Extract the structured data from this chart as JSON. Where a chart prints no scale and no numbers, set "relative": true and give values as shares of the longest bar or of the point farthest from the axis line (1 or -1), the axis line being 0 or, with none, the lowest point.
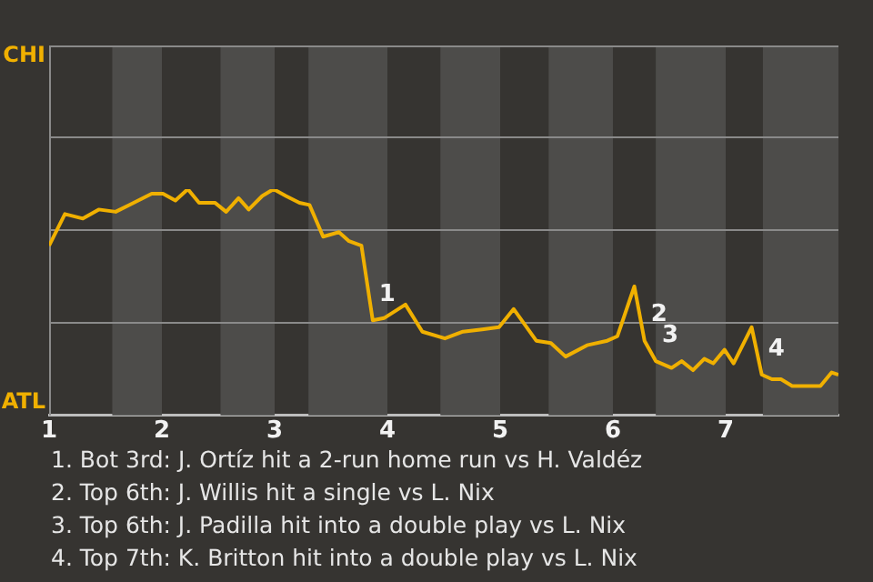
{
  "chart_data": {
    "type": "line",
    "relative": true,
    "x": [
      1,
      1.14,
      1.3,
      1.44,
      1.59,
      1.71,
      1.91,
      2.01,
      2.12,
      2.23,
      2.33,
      2.47,
      2.57,
      2.68,
      2.77,
      2.89,
      2.99,
      3.1,
      3.22,
      3.31,
      3.43,
      3.57,
      3.66,
      3.77,
      3.87,
      3.97,
      4.16,
      4.31,
      4.51,
      4.67,
      4.84,
      4.99,
      5.12,
      5.32,
      5.45,
      5.58,
      5.77,
      5.95,
      6.04,
      6.19,
      6.28,
      6.38,
      6.52,
      6.61,
      6.71,
      6.81,
      6.89,
      6.99,
      7.07,
      7.23,
      7.32,
      7.41,
      7.49,
      7.59,
      7.84,
      7.94,
      8
    ],
    "series": [
      {
        "color": "#f0b000",
        "values": [
          0.75,
          0.89,
          0.87,
          0.91,
          0.9,
          0.93,
          0.98,
          0.98,
          0.95,
          1,
          0.94,
          0.94,
          0.9,
          0.96,
          0.91,
          0.97,
          1,
          0.97,
          0.94,
          0.93,
          0.79,
          0.81,
          0.77,
          0.75,
          0.42,
          0.43,
          0.49,
          0.37,
          0.34,
          0.37,
          0.38,
          0.39,
          0.47,
          0.33,
          0.32,
          0.26,
          0.31,
          0.33,
          0.35,
          0.57,
          0.33,
          0.24,
          0.21,
          0.24,
          0.2,
          0.25,
          0.23,
          0.29,
          0.23,
          0.39,
          0.18,
          0.16,
          0.16,
          0.13,
          0.13,
          0.19,
          0.18
        ]
      }
    ],
    "xlim": [
      1,
      8
    ],
    "xticks": [
      1,
      2,
      3,
      4,
      5,
      6,
      7
    ],
    "legend": false,
    "ref_lines": [
      {
        "axis": "y",
        "value": 0.41,
        "color": "#8a8a8a"
      },
      {
        "axis": "y",
        "value": 0.82,
        "color": "#8a8a8a"
      },
      {
        "axis": "y",
        "value": 1.23,
        "color": "#8a8a8a"
      }
    ],
    "marker": "none",
    "line_style": "solid",
    "bands": [
      {
        "axis": "x",
        "from": 1.56,
        "to": 2,
        "color": "#4d4c4a"
      },
      {
        "axis": "x",
        "from": 2.52,
        "to": 3,
        "color": "#4d4c4a"
      },
      {
        "axis": "x",
        "from": 3.3,
        "to": 4,
        "color": "#4d4c4a"
      },
      {
        "axis": "x",
        "from": 4.47,
        "to": 5,
        "color": "#4d4c4a"
      },
      {
        "axis": "x",
        "from": 5.43,
        "to": 6,
        "color": "#4d4c4a"
      },
      {
        "axis": "x",
        "from": 6.38,
        "to": 7,
        "color": "#4d4c4a"
      },
      {
        "axis": "x",
        "from": 7.33,
        "to": 8,
        "color": "#4d4c4a"
      }
    ],
    "annotations": [
      "CHI",
      "ATL",
      {
        "text": "1",
        "x": 3.87,
        "y": 0.42
      },
      {
        "text": "2",
        "x": 6.28,
        "y": 0.33
      },
      {
        "text": "3",
        "x": 6.38,
        "y": 0.24
      },
      {
        "text": "4",
        "x": 7.32,
        "y": 0.18
      },
      "1. Bot 3rd: J. Ortíz hit a 2-run home run vs H. Valdéz",
      "2. Top 6th: J. Willis hit a single vs L. Nix",
      "3. Top 6th: J. Padilla hit into a double play vs L. Nix",
      "4. Top 7th: K. Britton hit into a double play vs L. Nix"
    ]
  }
}
